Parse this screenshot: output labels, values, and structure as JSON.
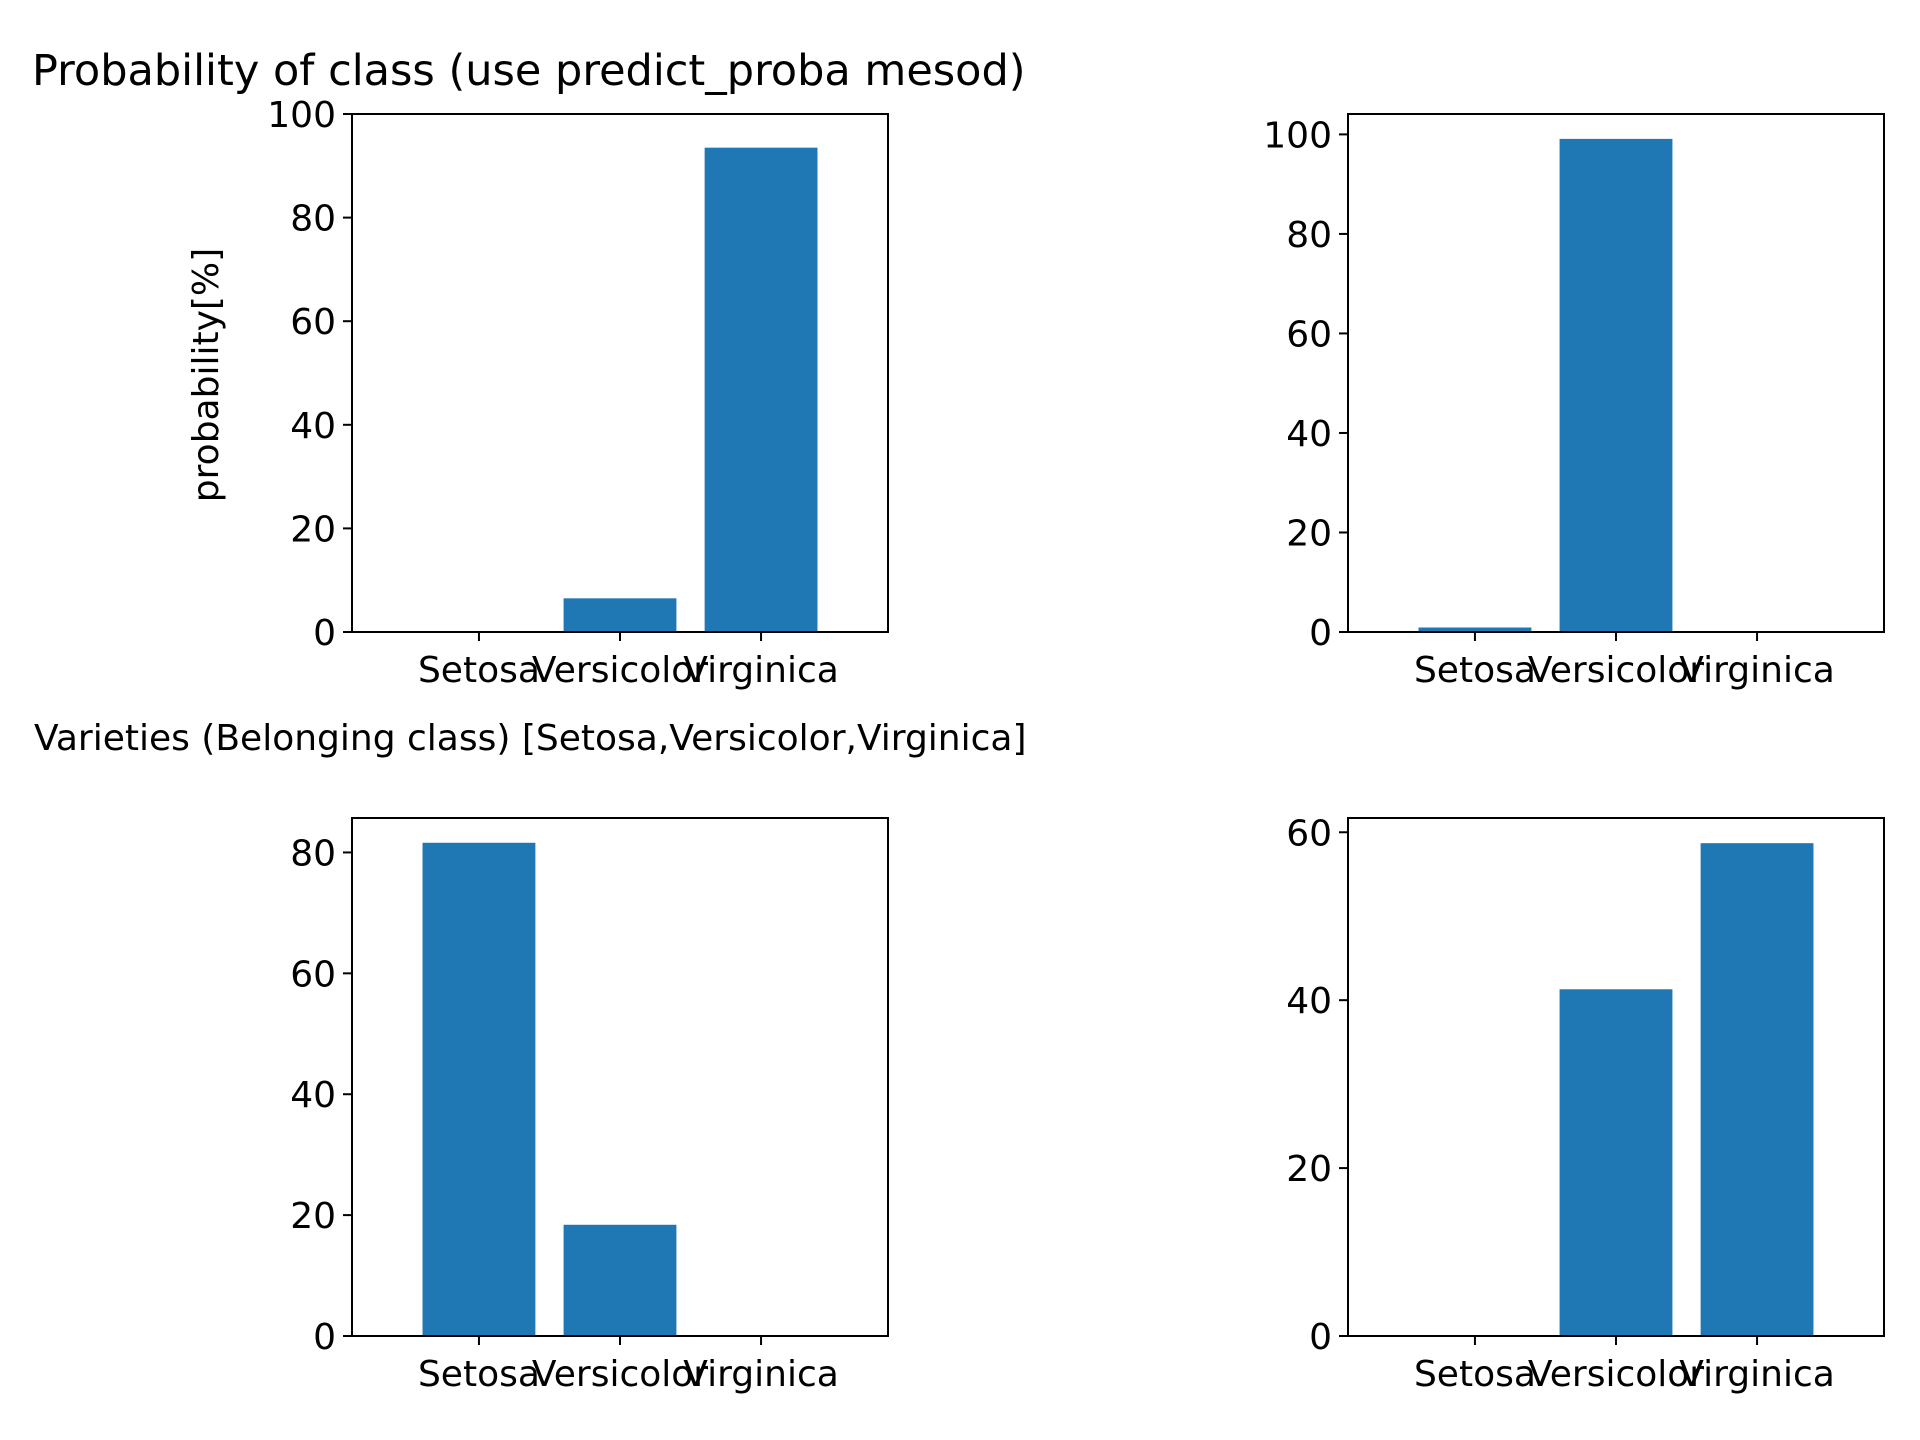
{
  "figure": {
    "title": "Probability of class (use predict_proba mesod)",
    "xlabel": "Varieties (Belonging class) [Setosa,Versicolor,Virginica]",
    "ylabel": "probability[%]"
  },
  "chart_data": [
    {
      "type": "bar",
      "position": "top-left",
      "categories": [
        "Setosa",
        "Versicolor",
        "Virginica"
      ],
      "values": [
        0,
        6.5,
        93.5
      ],
      "ylim": [
        0,
        100
      ],
      "yticks": [
        0,
        20,
        40,
        60,
        80,
        100
      ],
      "color": "#1f77b4"
    },
    {
      "type": "bar",
      "position": "top-right",
      "categories": [
        "Setosa",
        "Versicolor",
        "Virginica"
      ],
      "values": [
        0.9,
        99.1,
        0
      ],
      "ylim": [
        0,
        104.1
      ],
      "yticks": [
        0,
        20,
        40,
        60,
        80,
        100
      ],
      "color": "#1f77b4"
    },
    {
      "type": "bar",
      "position": "bottom-left",
      "categories": [
        "Setosa",
        "Versicolor",
        "Virginica"
      ],
      "values": [
        81.6,
        18.4,
        0
      ],
      "ylim": [
        0,
        85.7
      ],
      "yticks": [
        0,
        20,
        40,
        60,
        80
      ],
      "color": "#1f77b4"
    },
    {
      "type": "bar",
      "position": "bottom-right",
      "categories": [
        "Setosa",
        "Versicolor",
        "Virginica"
      ],
      "values": [
        0,
        41.3,
        58.7
      ],
      "ylim": [
        0,
        61.7
      ],
      "yticks": [
        0,
        20,
        40,
        60
      ],
      "color": "#1f77b4"
    }
  ]
}
